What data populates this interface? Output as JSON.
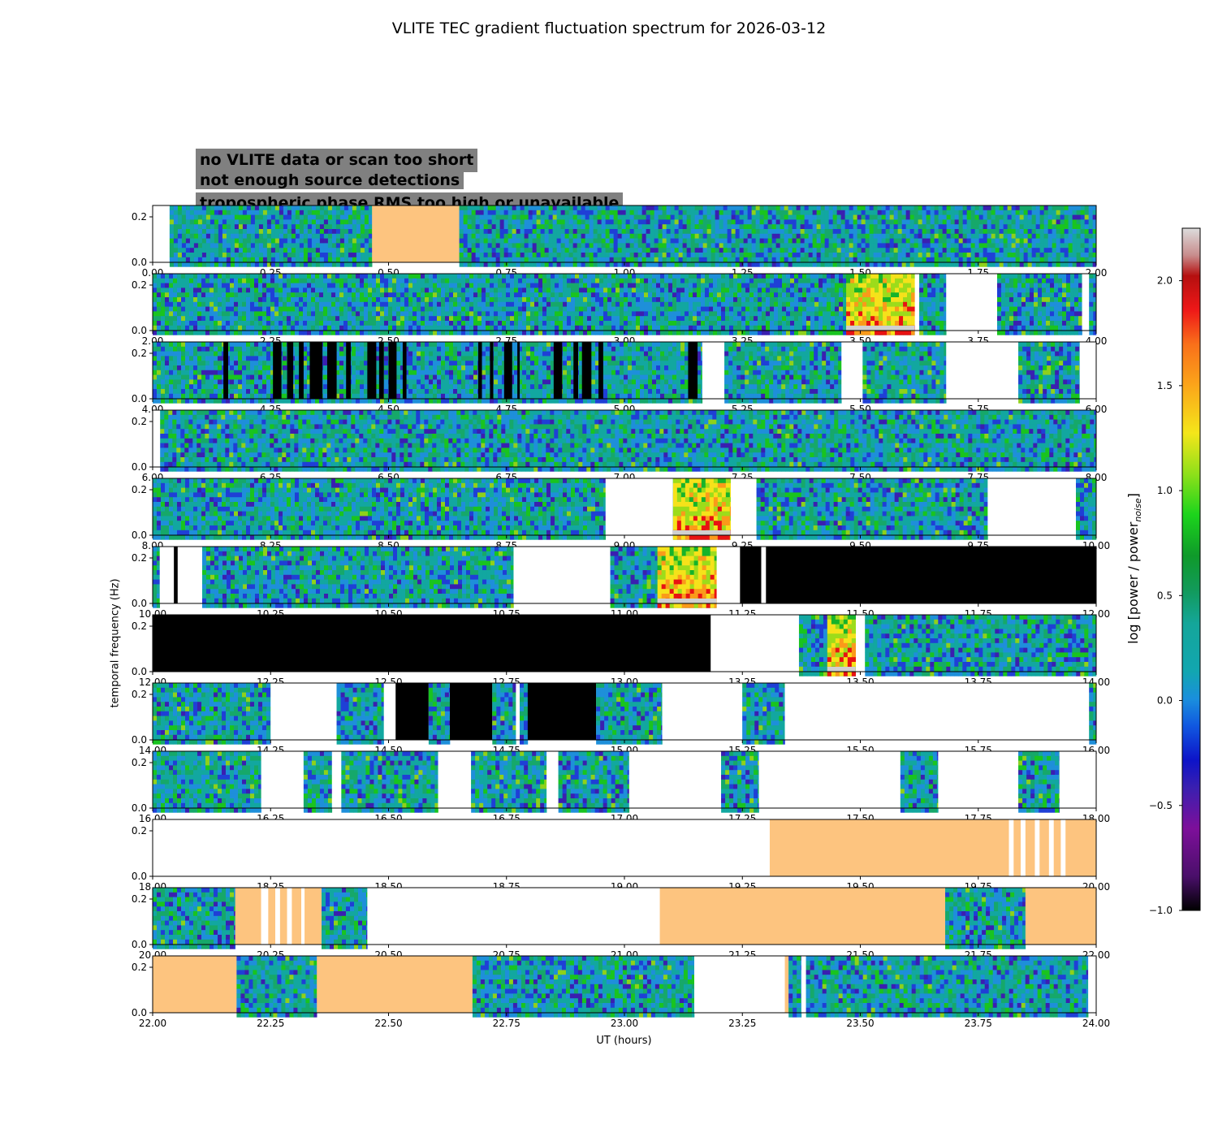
{
  "chart_data": {
    "type": "heatmap",
    "title": "VLITE TEC gradient fluctuation spectrum for 2026-03-12",
    "xlabel": "UT (hours)",
    "ylabel": "temporal frequency (Hz)",
    "ylim": [
      0,
      0.25
    ],
    "y_ticks": [
      "0.0",
      "0.2"
    ],
    "colorbar": {
      "label_main": "log [power / power",
      "label_sub": "noise",
      "label_end": "]",
      "range": [
        -1.0,
        2.25
      ],
      "ticks": [
        -1.0,
        -0.5,
        0.0,
        0.5,
        1.0,
        1.5,
        2.0
      ],
      "tick_labels": [
        "−1.0",
        "−0.5",
        "0.0",
        "0.5",
        "1.0",
        "1.5",
        "2.0"
      ]
    },
    "legend": {
      "placement": "top-left",
      "entries": [
        {
          "label": "no VLITE data or scan too short",
          "text_color": "#ffffff",
          "box_color": "#808080"
        },
        {
          "label": "not enough source detections",
          "text_color": "#000000",
          "box_color": "#808080"
        },
        {
          "label": "tropospheric phase RMS too high or unavailable",
          "text_color": "#fdc47f",
          "box_color": "#808080"
        }
      ]
    },
    "flag_colors": {
      "nodata": "#ffffff",
      "nosrc": "#000000",
      "tropo": "#fdc47f",
      "data_low": "#1a7fd0",
      "data_mid": "#14a69a",
      "data_high": "#12b534"
    },
    "panels": [
      {
        "range": [
          0,
          2
        ],
        "ticks": [
          "0.00",
          "0.25",
          "0.50",
          "0.75",
          "1.00",
          "1.25",
          "1.50",
          "1.75",
          "2.00"
        ],
        "blocks": [
          [
            "nodata",
            0,
            0.036
          ],
          [
            "data",
            0.036,
            0.465
          ],
          [
            "tropo",
            0.465,
            0.65
          ],
          [
            "data",
            0.65,
            2
          ]
        ],
        "hot": []
      },
      {
        "range": [
          2,
          4
        ],
        "ticks": [
          "2.00",
          "2.25",
          "2.50",
          "2.75",
          "3.00",
          "3.25",
          "3.50",
          "3.75",
          "4.00"
        ],
        "blocks": [
          [
            "data",
            2,
            3.47
          ],
          [
            "data",
            3.47,
            3.615
          ],
          [
            "nodata",
            3.615,
            3.625
          ],
          [
            "data",
            3.625,
            3.682
          ],
          [
            "nodata",
            3.682,
            3.79
          ],
          [
            "data",
            3.79,
            3.97
          ],
          [
            "nodata",
            3.97,
            3.985
          ],
          [
            "data",
            3.985,
            4
          ]
        ],
        "hot": [
          [
            3.47,
            3.615
          ]
        ]
      },
      {
        "range": [
          4,
          6
        ],
        "ticks": [
          "4.00",
          "4.25",
          "4.50",
          "4.75",
          "5.00",
          "5.25",
          "5.50",
          "5.75",
          "6.00"
        ],
        "blocks": [
          [
            "data",
            4,
            5.165
          ],
          [
            "nodata",
            5.165,
            5.212
          ],
          [
            "data",
            5.212,
            5.46
          ],
          [
            "nodata",
            5.46,
            5.505
          ],
          [
            "data",
            5.505,
            5.682
          ],
          [
            "nodata",
            5.682,
            5.835
          ],
          [
            "data",
            5.835,
            5.965
          ],
          [
            "nodata",
            5.965,
            6
          ]
        ],
        "nosrc": [
          4.15,
          4.16,
          4.255,
          4.273,
          4.285,
          4.298,
          4.31,
          4.32,
          4.333,
          4.36,
          4.37,
          4.39,
          4.41,
          4.42,
          4.455,
          4.474,
          4.48,
          4.49,
          4.5,
          4.517,
          4.53,
          4.538,
          4.69,
          4.698,
          4.715,
          4.722,
          4.745,
          4.762,
          4.773,
          4.778,
          4.85,
          4.868,
          4.892,
          4.902,
          4.91,
          4.93,
          4.945,
          4.955,
          5.135,
          5.155
        ],
        "hot": []
      },
      {
        "range": [
          6,
          8
        ],
        "ticks": [
          "6.00",
          "6.25",
          "6.50",
          "6.75",
          "7.00",
          "7.25",
          "7.50",
          "7.75",
          "8.00"
        ],
        "blocks": [
          [
            "nodata",
            6,
            6.016
          ],
          [
            "data",
            6.016,
            8
          ]
        ],
        "hot": []
      },
      {
        "range": [
          8,
          10
        ],
        "ticks": [
          "8.00",
          "8.25",
          "8.50",
          "8.75",
          "9.00",
          "9.25",
          "9.50",
          "9.75",
          "10.00"
        ],
        "blocks": [
          [
            "data",
            8,
            8.96
          ],
          [
            "nodata",
            8.96,
            9.103
          ],
          [
            "data",
            9.103,
            9.225
          ],
          [
            "nodata",
            9.225,
            9.28
          ],
          [
            "data",
            9.28,
            9.77
          ],
          [
            "nodata",
            9.77,
            9.957
          ],
          [
            "data",
            9.957,
            10
          ]
        ],
        "hot": [
          [
            9.103,
            9.225
          ]
        ]
      },
      {
        "range": [
          10,
          12
        ],
        "ticks": [
          "10.00",
          "10.25",
          "10.50",
          "10.75",
          "11.00",
          "11.25",
          "11.50",
          "11.75",
          "12.00"
        ],
        "blocks": [
          [
            "data",
            10,
            10.015
          ],
          [
            "nodata",
            10.015,
            10.105
          ],
          [
            "data",
            10.105,
            10.765
          ],
          [
            "nodata",
            10.765,
            10.97
          ],
          [
            "data",
            10.97,
            11.07
          ],
          [
            "data",
            11.07,
            11.195
          ],
          [
            "nodata",
            11.195,
            11.245
          ],
          [
            "nosrc",
            11.245,
            11.29
          ],
          [
            "nodata",
            11.29,
            11.3
          ],
          [
            "nosrc",
            11.3,
            12
          ]
        ],
        "nosrc": [
          10.045,
          10.053
        ],
        "hot": [
          [
            11.07,
            11.195
          ]
        ]
      },
      {
        "range": [
          12,
          14
        ],
        "ticks": [
          "12.00",
          "12.25",
          "12.50",
          "12.75",
          "13.00",
          "13.25",
          "13.50",
          "13.75",
          "14.00"
        ],
        "blocks": [
          [
            "nosrc",
            12,
            13.183
          ],
          [
            "nodata",
            13.183,
            13.37
          ],
          [
            "data",
            13.37,
            13.43
          ],
          [
            "data",
            13.43,
            13.49
          ],
          [
            "nodata",
            13.49,
            13.51
          ],
          [
            "data",
            13.51,
            14
          ]
        ],
        "hot": [
          [
            13.43,
            13.49
          ]
        ]
      },
      {
        "range": [
          14,
          16
        ],
        "ticks": [
          "14.00",
          "14.25",
          "14.50",
          "14.75",
          "15.00",
          "15.25",
          "15.50",
          "15.75",
          "16.00"
        ],
        "blocks": [
          [
            "data",
            14,
            14.25
          ],
          [
            "nodata",
            14.25,
            14.39
          ],
          [
            "data",
            14.39,
            14.49
          ],
          [
            "nodata",
            14.49,
            14.515
          ],
          [
            "nosrc",
            14.515,
            14.585
          ],
          [
            "data",
            14.585,
            14.63
          ],
          [
            "nosrc",
            14.63,
            14.72
          ],
          [
            "data",
            14.72,
            14.77
          ],
          [
            "nodata",
            14.77,
            14.778
          ],
          [
            "data",
            14.778,
            14.795
          ],
          [
            "nosrc",
            14.795,
            14.94
          ],
          [
            "data",
            14.94,
            15.08
          ],
          [
            "nodata",
            15.08,
            15.25
          ],
          [
            "data",
            15.25,
            15.34
          ],
          [
            "nodata",
            15.34,
            15.985
          ],
          [
            "data",
            15.985,
            16
          ]
        ],
        "hot": []
      },
      {
        "range": [
          16,
          18
        ],
        "ticks": [
          "16.00",
          "16.25",
          "16.50",
          "16.75",
          "17.00",
          "17.25",
          "17.50",
          "17.75",
          "18.00"
        ],
        "blocks": [
          [
            "data",
            16,
            16.23
          ],
          [
            "nodata",
            16.23,
            16.32
          ],
          [
            "data",
            16.32,
            16.38
          ],
          [
            "nodata",
            16.38,
            16.4
          ],
          [
            "data",
            16.4,
            16.605
          ],
          [
            "nodata",
            16.605,
            16.675
          ],
          [
            "data",
            16.675,
            16.835
          ],
          [
            "nodata",
            16.835,
            16.86
          ],
          [
            "data",
            16.86,
            17.01
          ],
          [
            "nodata",
            17.01,
            17.205
          ],
          [
            "data",
            17.205,
            17.285
          ],
          [
            "nodata",
            17.285,
            17.585
          ],
          [
            "data",
            17.585,
            17.665
          ],
          [
            "nodata",
            17.665,
            17.835
          ],
          [
            "data",
            17.835,
            17.922
          ],
          [
            "nodata",
            17.922,
            18
          ]
        ],
        "hot": []
      },
      {
        "range": [
          18,
          20
        ],
        "ticks": [
          "18.00",
          "18.25",
          "18.50",
          "18.75",
          "19.00",
          "19.25",
          "19.50",
          "19.75",
          "20.00"
        ],
        "blocks": [
          [
            "nodata",
            18,
            19.308
          ],
          [
            "tropo",
            19.308,
            19.815
          ],
          [
            "nodata",
            19.815,
            19.825
          ],
          [
            "tropo",
            19.825,
            19.84
          ],
          [
            "nodata",
            19.84,
            19.85
          ],
          [
            "tropo",
            19.85,
            19.87
          ],
          [
            "nodata",
            19.87,
            19.88
          ],
          [
            "tropo",
            19.88,
            19.9
          ],
          [
            "nodata",
            19.9,
            19.91
          ],
          [
            "tropo",
            19.91,
            19.925
          ],
          [
            "nodata",
            19.925,
            19.935
          ],
          [
            "tropo",
            19.935,
            20
          ]
        ],
        "hot": []
      },
      {
        "range": [
          20,
          22
        ],
        "ticks": [
          "20.00",
          "20.25",
          "20.50",
          "20.75",
          "21.00",
          "21.25",
          "21.50",
          "21.75",
          "22.00"
        ],
        "blocks": [
          [
            "data",
            20,
            20.175
          ],
          [
            "tropo",
            20.175,
            20.23
          ],
          [
            "nodata",
            20.23,
            20.245
          ],
          [
            "tropo",
            20.245,
            20.26
          ],
          [
            "nodata",
            20.26,
            20.27
          ],
          [
            "tropo",
            20.27,
            20.285
          ],
          [
            "nodata",
            20.285,
            20.295
          ],
          [
            "tropo",
            20.295,
            20.315
          ],
          [
            "nodata",
            20.315,
            20.322
          ],
          [
            "tropo",
            20.322,
            20.358
          ],
          [
            "data",
            20.358,
            20.455
          ],
          [
            "nodata",
            20.455,
            21.075
          ],
          [
            "tropo",
            21.075,
            21.68
          ],
          [
            "data",
            21.68,
            21.85
          ],
          [
            "tropo",
            21.85,
            22
          ]
        ],
        "hot": []
      },
      {
        "range": [
          22,
          24
        ],
        "ticks": [
          "22.00",
          "22.25",
          "22.50",
          "22.75",
          "23.00",
          "23.25",
          "23.50",
          "23.75",
          "24.00"
        ],
        "blocks": [
          [
            "tropo",
            22,
            22.178
          ],
          [
            "data",
            22.178,
            22.348
          ],
          [
            "tropo",
            22.348,
            22.678
          ],
          [
            "data",
            22.678,
            23.148
          ],
          [
            "nodata",
            23.148,
            23.34
          ],
          [
            "tropo",
            23.34,
            23.348
          ],
          [
            "data",
            23.348,
            23.375
          ],
          [
            "nodata",
            23.375,
            23.385
          ],
          [
            "data",
            23.385,
            23.983
          ],
          [
            "nodata",
            23.983,
            24
          ]
        ],
        "hot": []
      }
    ]
  }
}
